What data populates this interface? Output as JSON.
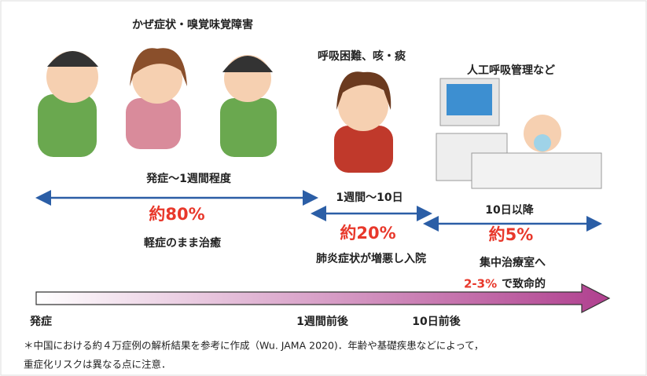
{
  "stages": [
    {
      "symptoms": "かぜ症状・嗅覚味覚障害",
      "period": "発症〜1週間程度",
      "share": "約80%",
      "outcome": "軽症のまま治癒"
    },
    {
      "symptoms": "呼吸困難、咳・痰",
      "period": "1週間〜10日",
      "share": "約20%",
      "outcome": "肺炎症状が増悪し入院"
    },
    {
      "symptoms": "人工呼吸管理など",
      "period": "10日以降",
      "share": "約5%",
      "outcome": "集中治療室へ",
      "fatality_rate": "2-3%",
      "fatality_text": "で致命的"
    }
  ],
  "timeline": [
    "発症",
    "1週間前後",
    "10日前後"
  ],
  "footnote": [
    "＊中国における約４万症例の解析結果を参考に作成（Wu. JAMA 2020)．年齢や基礎疾患などによって，",
    "重症化リスクは異なる点に注意．"
  ]
}
